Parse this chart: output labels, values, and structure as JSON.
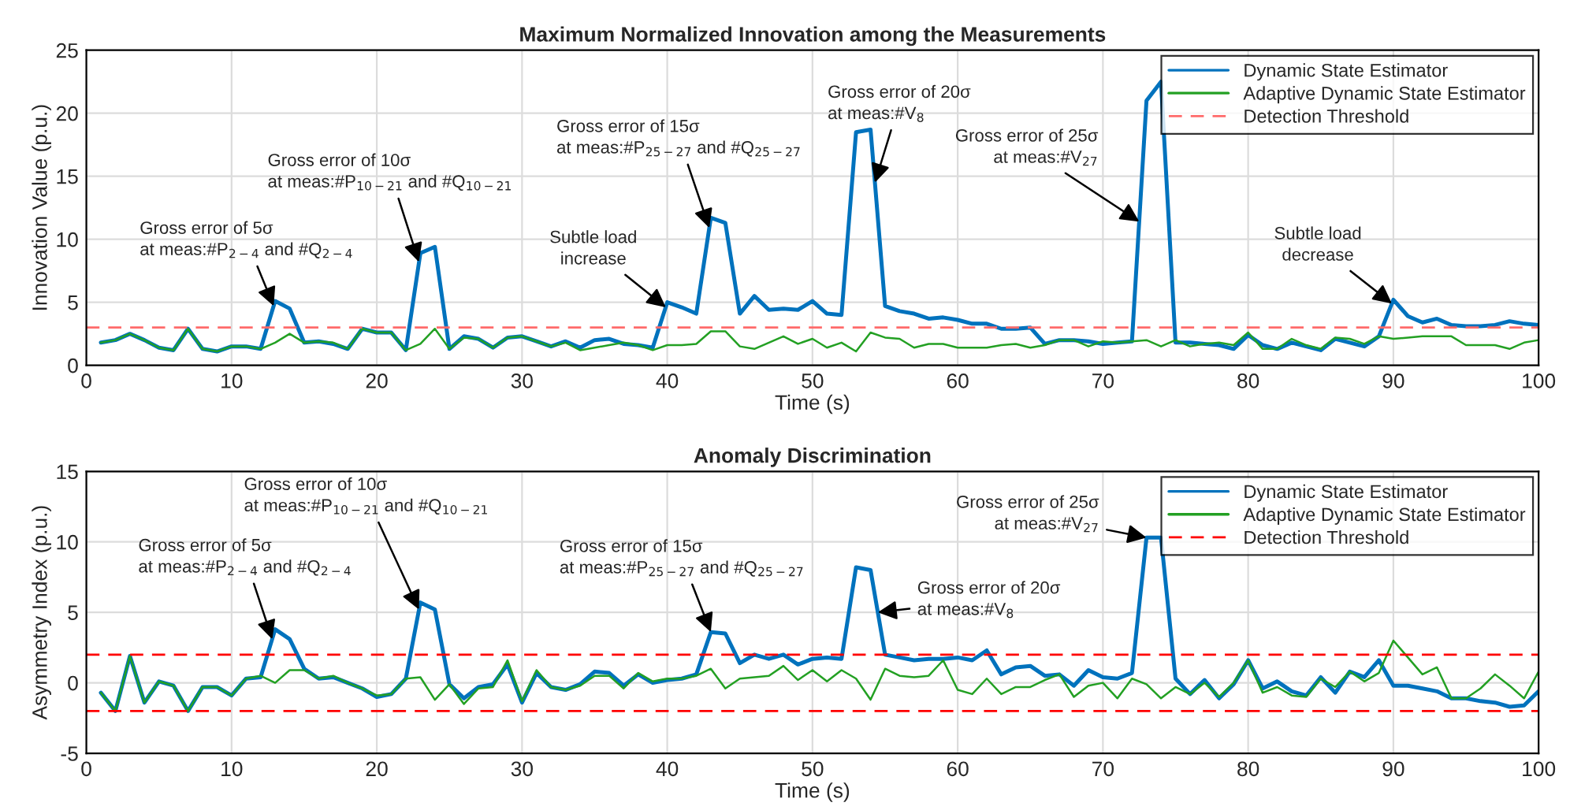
{
  "chart_data": [
    {
      "type": "line",
      "title": "Maximum Normalized Innovation among the Measurements",
      "xlabel": "Time (s)",
      "ylabel": "Innovation Value (p.u.)",
      "x": [
        1,
        2,
        3,
        4,
        5,
        6,
        7,
        8,
        9,
        10,
        11,
        12,
        13,
        14,
        15,
        16,
        17,
        18,
        19,
        20,
        21,
        22,
        23,
        24,
        25,
        26,
        27,
        28,
        29,
        30,
        31,
        32,
        33,
        34,
        35,
        36,
        37,
        38,
        39,
        40,
        41,
        42,
        43,
        44,
        45,
        46,
        47,
        48,
        49,
        50,
        51,
        52,
        53,
        54,
        55,
        56,
        57,
        58,
        59,
        60,
        61,
        62,
        63,
        64,
        65,
        66,
        67,
        68,
        69,
        70,
        71,
        72,
        73,
        74,
        75,
        76,
        77,
        78,
        79,
        80,
        81,
        82,
        83,
        84,
        85,
        86,
        87,
        88,
        89,
        90,
        91,
        92,
        93,
        94,
        95,
        96,
        97,
        98,
        99,
        100
      ],
      "series": [
        {
          "name": "Dynamic State Estimator",
          "color": "#0072bd",
          "values": [
            1.8,
            2.0,
            2.5,
            2.0,
            1.4,
            1.2,
            2.9,
            1.3,
            1.1,
            1.5,
            1.5,
            1.3,
            5.1,
            4.5,
            1.8,
            1.9,
            1.7,
            1.3,
            2.9,
            2.6,
            2.6,
            1.2,
            8.9,
            9.4,
            1.3,
            2.3,
            2.1,
            1.4,
            2.2,
            2.3,
            1.9,
            1.5,
            1.9,
            1.4,
            2.0,
            2.1,
            1.7,
            1.6,
            1.4,
            5.0,
            4.6,
            4.1,
            11.7,
            11.3,
            4.1,
            5.5,
            4.4,
            4.5,
            4.4,
            5.1,
            4.1,
            4.0,
            18.5,
            18.7,
            4.7,
            4.3,
            4.1,
            3.7,
            3.8,
            3.6,
            3.3,
            3.3,
            2.9,
            2.9,
            3.0,
            1.7,
            2.0,
            2.0,
            1.9,
            1.7,
            1.8,
            1.9,
            21.0,
            22.5,
            1.8,
            1.8,
            1.7,
            1.6,
            1.3,
            2.4,
            1.6,
            1.3,
            1.8,
            1.5,
            1.2,
            2.1,
            1.8,
            1.5,
            2.3,
            5.2,
            3.9,
            3.4,
            3.7,
            3.2,
            3.1,
            3.1,
            3.2,
            3.5,
            3.3,
            3.2
          ]
        },
        {
          "name": "Adaptive Dynamic State Estimator",
          "color": "#23a023",
          "values": [
            1.8,
            2.0,
            2.5,
            2.0,
            1.4,
            1.2,
            2.9,
            1.3,
            1.1,
            1.5,
            1.5,
            1.3,
            1.8,
            2.5,
            1.8,
            1.9,
            1.8,
            1.3,
            2.9,
            2.6,
            2.6,
            1.2,
            1.7,
            2.9,
            1.3,
            2.2,
            2.1,
            1.4,
            2.2,
            2.3,
            1.9,
            1.5,
            1.8,
            1.2,
            1.4,
            1.6,
            1.8,
            1.6,
            1.2,
            1.6,
            1.6,
            1.7,
            2.7,
            2.7,
            1.5,
            1.3,
            1.8,
            2.3,
            1.7,
            2.1,
            1.4,
            1.8,
            1.1,
            2.6,
            2.2,
            2.1,
            1.4,
            1.7,
            1.7,
            1.4,
            1.4,
            1.4,
            1.6,
            1.7,
            1.4,
            1.6,
            2.0,
            2.0,
            1.5,
            1.9,
            1.8,
            1.9,
            2.0,
            1.5,
            2.0,
            1.5,
            1.7,
            1.8,
            1.6,
            2.6,
            1.3,
            1.3,
            2.1,
            1.6,
            1.3,
            2.2,
            2.1,
            1.7,
            2.3,
            2.1,
            2.2,
            2.3,
            2.3,
            2.3,
            1.6,
            1.6,
            1.6,
            1.3,
            1.8,
            2.0
          ]
        }
      ],
      "ref_lines": [
        {
          "axis": "y",
          "value": 3,
          "label": "Detection Threshold",
          "color": "#ff6b6b",
          "line_style": "dashed"
        }
      ],
      "xlim": [
        0,
        100
      ],
      "xticks": [
        0,
        10,
        20,
        30,
        40,
        50,
        60,
        70,
        80,
        90,
        100
      ],
      "ylim": [
        0,
        25
      ],
      "yticks": [
        0,
        5,
        10,
        15,
        20,
        25
      ],
      "grid": true,
      "legend": "top right",
      "annotations": [
        {
          "text": "Gross error of 5σ\nat meas:#P$_{2−4}$ and #Q$_{2−4}$",
          "x": 12.9,
          "y": 4.7
        },
        {
          "text": "Gross error of 10σ\nat meas:#P$_{10−21}$ and #Q$_{10−21}$",
          "x": 22.9,
          "y": 8.2
        },
        {
          "text": "Subtle load\nincrease",
          "x": 39.9,
          "y": 4.6
        },
        {
          "text": "Gross error of 15σ\nat meas:#P$_{25−27}$ and #Q$_{25−27}$",
          "x": 42.9,
          "y": 10.9
        },
        {
          "text": "Gross error of 20σ\nat meas:#V$_{8}$",
          "x": 54.3,
          "y": 14.5
        },
        {
          "text": "Gross error of 25σ\nat meas:#V$_{27}$",
          "x": 72.5,
          "y": 11.4
        },
        {
          "text": "Subtle load\ndecrease",
          "x": 89.9,
          "y": 4.9
        }
      ]
    },
    {
      "type": "line",
      "title": "Anomaly Discrimination",
      "xlabel": "Time (s)",
      "ylabel": "Asymmetry Index (p.u.)",
      "x": [
        1,
        2,
        3,
        4,
        5,
        6,
        7,
        8,
        9,
        10,
        11,
        12,
        13,
        14,
        15,
        16,
        17,
        18,
        19,
        20,
        21,
        22,
        23,
        24,
        25,
        26,
        27,
        28,
        29,
        30,
        31,
        32,
        33,
        34,
        35,
        36,
        37,
        38,
        39,
        40,
        41,
        42,
        43,
        44,
        45,
        46,
        47,
        48,
        49,
        50,
        51,
        52,
        53,
        54,
        55,
        56,
        57,
        58,
        59,
        60,
        61,
        62,
        63,
        64,
        65,
        66,
        67,
        68,
        69,
        70,
        71,
        72,
        73,
        74,
        75,
        76,
        77,
        78,
        79,
        80,
        81,
        82,
        83,
        84,
        85,
        86,
        87,
        88,
        89,
        90,
        91,
        92,
        93,
        94,
        95,
        96,
        97,
        98,
        99,
        100
      ],
      "series": [
        {
          "name": "Dynamic State Estimator",
          "color": "#0072bd",
          "values": [
            -0.7,
            -2.0,
            1.9,
            -1.4,
            0.1,
            -0.2,
            -2.0,
            -0.3,
            -0.3,
            -0.9,
            0.3,
            0.4,
            3.8,
            3.1,
            1.0,
            0.3,
            0.4,
            0.0,
            -0.4,
            -1.0,
            -0.8,
            0.3,
            5.7,
            5.2,
            -0.1,
            -1.1,
            -0.3,
            -0.1,
            1.3,
            -1.4,
            0.7,
            -0.3,
            -0.5,
            -0.1,
            0.8,
            0.7,
            -0.2,
            0.6,
            0.0,
            0.2,
            0.3,
            0.6,
            3.6,
            3.5,
            1.4,
            2.0,
            1.7,
            2.0,
            1.3,
            1.7,
            1.8,
            1.7,
            8.2,
            8.0,
            2.0,
            1.8,
            1.6,
            1.7,
            1.7,
            1.8,
            1.6,
            2.3,
            0.6,
            1.1,
            1.2,
            0.5,
            0.6,
            -0.2,
            0.9,
            0.4,
            0.3,
            0.7,
            10.3,
            10.3,
            0.3,
            -0.8,
            0.2,
            -1.1,
            -0.1,
            1.6,
            -0.4,
            0.1,
            -0.6,
            -0.9,
            0.4,
            -0.7,
            0.8,
            0.4,
            1.6,
            -0.2,
            -0.2,
            -0.4,
            -0.6,
            -1.1,
            -1.1,
            -1.3,
            -1.4,
            -1.7,
            -1.6,
            -0.6
          ]
        },
        {
          "name": "Adaptive Dynamic State Estimator",
          "color": "#23a023",
          "values": [
            -0.7,
            -2.0,
            1.9,
            -1.4,
            0.1,
            -0.2,
            -2.0,
            -0.3,
            -0.3,
            -0.9,
            0.3,
            0.5,
            0.0,
            0.9,
            0.9,
            0.3,
            0.5,
            0.0,
            -0.4,
            -0.9,
            -0.8,
            0.3,
            0.4,
            -1.2,
            -0.1,
            -1.5,
            -0.4,
            -0.3,
            1.6,
            -1.3,
            0.9,
            -0.3,
            -0.5,
            -0.2,
            0.5,
            0.5,
            -0.4,
            0.7,
            0.1,
            0.3,
            0.3,
            0.5,
            1.0,
            -0.4,
            0.3,
            0.4,
            0.5,
            1.2,
            0.2,
            0.9,
            0.1,
            0.9,
            0.3,
            -1.2,
            1.0,
            0.5,
            0.4,
            0.5,
            1.6,
            -0.5,
            -0.8,
            0.3,
            -0.8,
            -0.3,
            -0.3,
            0.2,
            0.6,
            -1.0,
            -0.2,
            0.0,
            -1.1,
            0.3,
            -0.1,
            -1.1,
            -0.3,
            -0.8,
            0.0,
            -1.0,
            0.0,
            1.6,
            -0.7,
            -0.3,
            -0.9,
            -1.0,
            0.3,
            -0.3,
            0.8,
            0.1,
            0.7,
            3.0,
            1.8,
            0.6,
            1.1,
            -1.1,
            -1.1,
            -0.4,
            0.6,
            -0.2,
            -1.1,
            0.8
          ]
        }
      ],
      "ref_lines": [
        {
          "axis": "y",
          "value": 2,
          "label": "Detection Threshold",
          "color": "#ff0000",
          "line_style": "dashed"
        },
        {
          "axis": "y",
          "value": -2,
          "color": "#ff0000",
          "line_style": "dashed"
        }
      ],
      "xlim": [
        0,
        100
      ],
      "xticks": [
        0,
        10,
        20,
        30,
        40,
        50,
        60,
        70,
        80,
        90,
        100
      ],
      "ylim": [
        -5,
        15
      ],
      "yticks": [
        -5,
        0,
        5,
        10,
        15
      ],
      "grid": true,
      "legend": "top right",
      "annotations": [
        {
          "text": "Gross error of 5σ\nat meas:#P$_{2−4}$ and #Q$_{2−4}$",
          "x": 12.8,
          "y": 3.1
        },
        {
          "text": "Gross error of 10σ\nat meas:#P$_{10−21}$ and #Q$_{10−21}$",
          "x": 22.9,
          "y": 5.2
        },
        {
          "text": "Gross error of 15σ\nat meas:#P$_{25−27}$ and #Q$_{25−27}$",
          "x": 43.0,
          "y": 3.6
        },
        {
          "text": "Gross error of 20σ\nat meas:#V$_{8}$",
          "x": 54.5,
          "y": 5.0
        },
        {
          "text": "Gross error of 25σ\nat meas:#V$_{27}$",
          "x": 73.0,
          "y": 10.3
        }
      ]
    }
  ]
}
